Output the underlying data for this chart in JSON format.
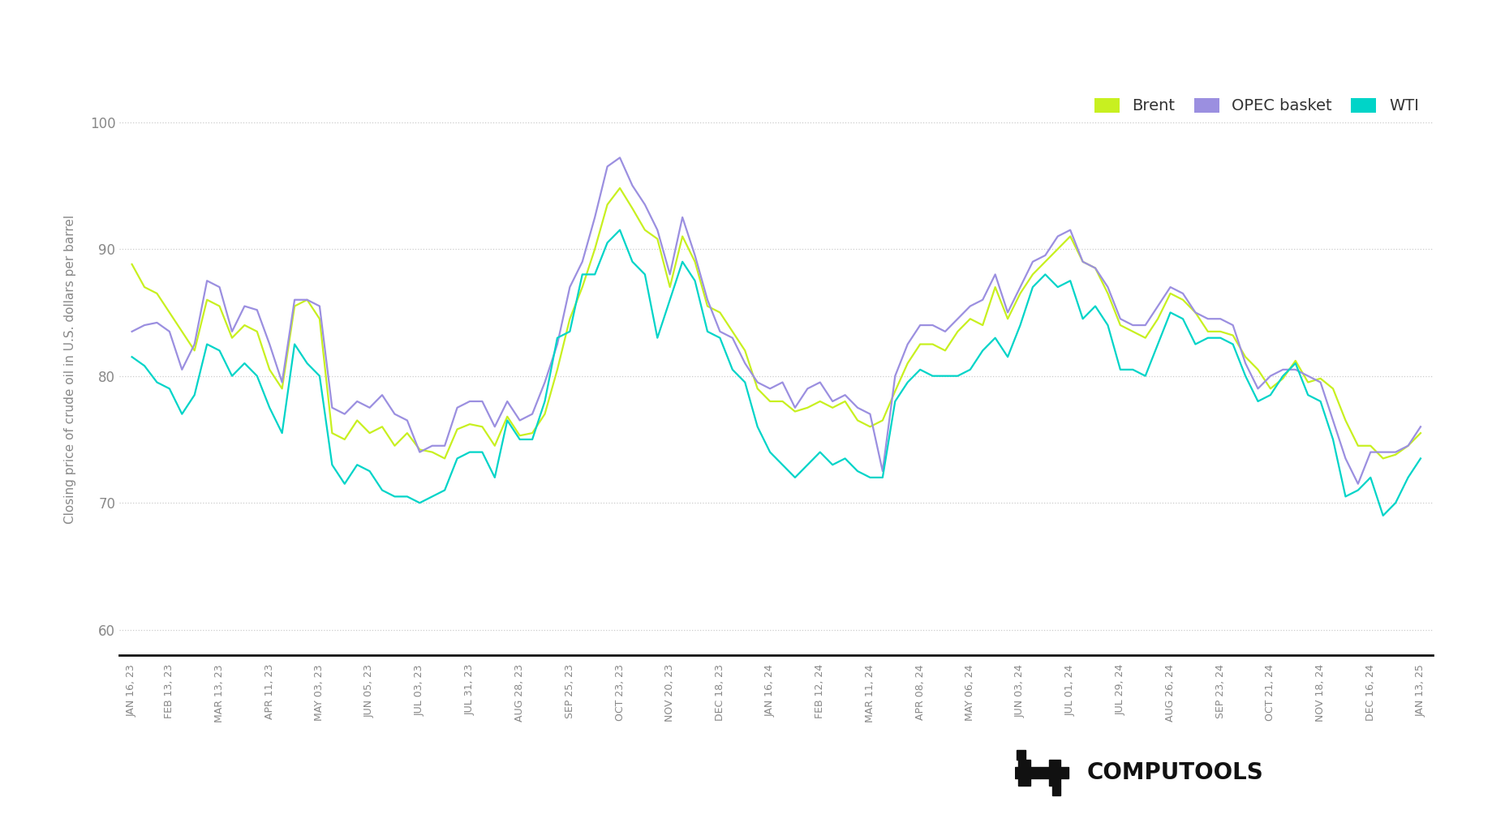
{
  "ylabel": "Closing price of crude oil in U.S. dollars per barrel",
  "ylim": [
    58,
    103
  ],
  "yticks": [
    60,
    70,
    80,
    90,
    100
  ],
  "background_color": "#ffffff",
  "grid_color": "#cccccc",
  "line_width": 1.6,
  "colors": {
    "Brent": "#c8f020",
    "OPEC basket": "#9b8fe0",
    "WTI": "#00d4c8"
  },
  "x_labels": [
    "JAN 16, 23",
    "FEB 13, 23",
    "MAR 13, 23",
    "APR 11, 23",
    "MAY 03, 23",
    "JUN 05, 23",
    "JUL 03, 23",
    "JUL 31, 23",
    "AUG 28, 23",
    "SEP 25, 23",
    "OCT 23, 23",
    "NOV 20, 23",
    "DEC 18, 23",
    "JAN 16, 24",
    "FEB 12, 24",
    "MAR 11, 24",
    "APR 08, 24",
    "MAY 06, 24",
    "JUN 03, 24",
    "JUL 01, 24",
    "JUL 29, 24",
    "AUG 26, 24",
    "SEP 23, 24",
    "OCT 21, 24",
    "NOV 18, 24",
    "DEC 16, 24",
    "JAN 13, 25"
  ],
  "logo_text": "COMPUTOOLS"
}
